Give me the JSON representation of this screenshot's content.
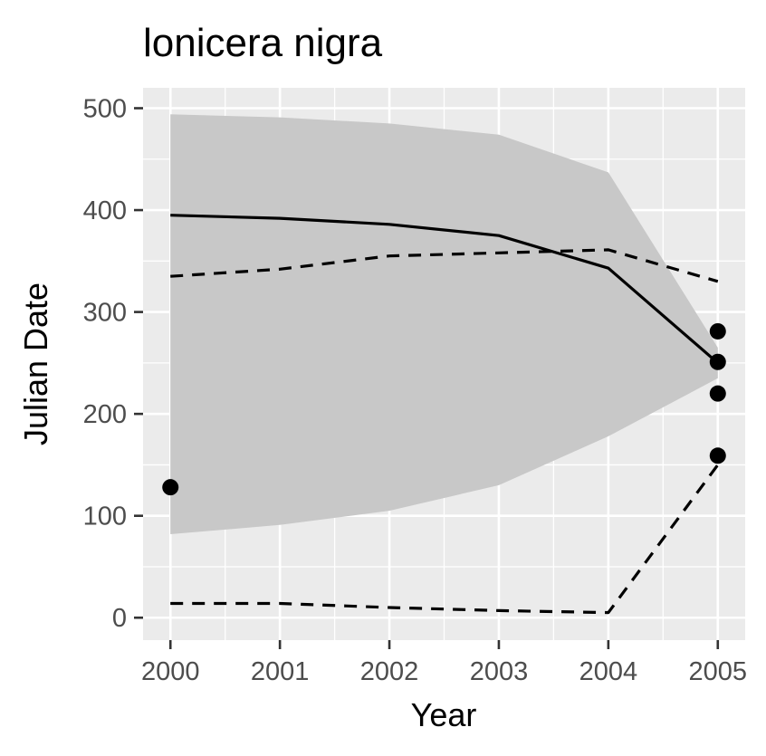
{
  "chart_data": {
    "type": "line",
    "title": "lonicera nigra",
    "xlabel": "Year",
    "ylabel": "Julian Date",
    "x": [
      2000,
      2001,
      2002,
      2003,
      2004,
      2005
    ],
    "x_ticks": [
      "2000",
      "2001",
      "2002",
      "2003",
      "2004",
      "2005"
    ],
    "y_ticks": [
      "0",
      "100",
      "200",
      "300",
      "400",
      "500"
    ],
    "xlim": [
      1999.75,
      2005.25
    ],
    "ylim": [
      -22,
      520
    ],
    "grid": true,
    "background": "#ebebeb",
    "series": [
      {
        "kind": "line",
        "style": "solid",
        "values": [
          395,
          392,
          386,
          375,
          343,
          250
        ]
      },
      {
        "kind": "line",
        "style": "dashed",
        "values": [
          335,
          342,
          355,
          358,
          361,
          330
        ]
      },
      {
        "kind": "line",
        "style": "dashed",
        "values": [
          14,
          14,
          10,
          7,
          5,
          150
        ]
      }
    ],
    "ribbon": {
      "color": "#c8c8c8",
      "upper": [
        494,
        491,
        485,
        474,
        437,
        265
      ],
      "lower": [
        82,
        91,
        105,
        130,
        178,
        235
      ]
    },
    "points": [
      {
        "x": 2000,
        "y": 128
      },
      {
        "x": 2005,
        "y": 281
      },
      {
        "x": 2005,
        "y": 251
      },
      {
        "x": 2005,
        "y": 220
      },
      {
        "x": 2005,
        "y": 159
      }
    ]
  }
}
